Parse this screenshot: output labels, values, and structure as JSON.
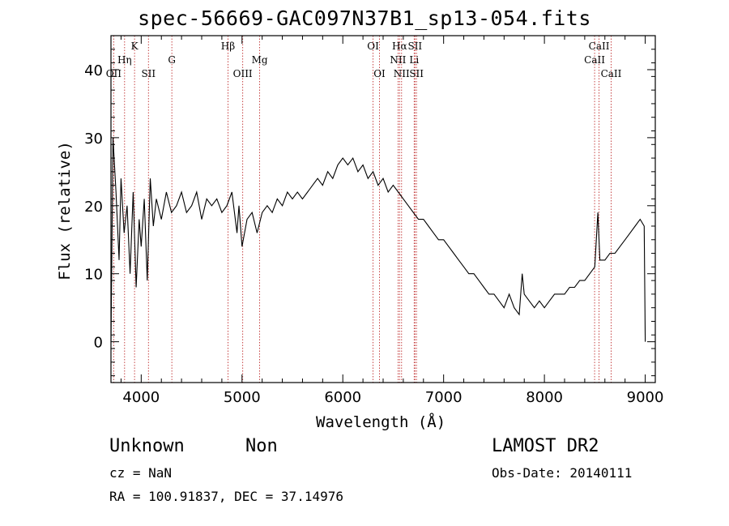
{
  "chart_data": {
    "type": "line",
    "title": "spec-56669-GAC097N37B1_sp13-054.fits",
    "xlabel": "Wavelength (Å)",
    "ylabel": "Flux (relative)",
    "xlim": [
      3700,
      9100
    ],
    "ylim": [
      -6,
      45
    ],
    "x_ticks": [
      "4000",
      "5000",
      "6000",
      "7000",
      "8000",
      "9000"
    ],
    "y_ticks": [
      "0",
      "10",
      "20",
      "30",
      "40"
    ],
    "grid": false,
    "series": [
      {
        "x": [
          3700,
          3720,
          3750,
          3780,
          3800,
          3830,
          3860,
          3890,
          3920,
          3950,
          3980,
          4000,
          4030,
          4060,
          4090,
          4120,
          4150,
          4200,
          4250,
          4300,
          4350,
          4400,
          4450,
          4500,
          4550,
          4600,
          4650,
          4700,
          4750,
          4800,
          4850,
          4900,
          4950,
          4970,
          5000,
          5050,
          5100,
          5150,
          5200,
          5250,
          5300,
          5350,
          5400,
          5450,
          5500,
          5550,
          5600,
          5650,
          5700,
          5750,
          5800,
          5850,
          5900,
          5950,
          6000,
          6050,
          6100,
          6150,
          6200,
          6250,
          6300,
          6350,
          6400,
          6450,
          6500,
          6550,
          6600,
          6650,
          6700,
          6750,
          6800,
          6850,
          6900,
          6950,
          7000,
          7050,
          7100,
          7150,
          7200,
          7250,
          7300,
          7350,
          7400,
          7450,
          7500,
          7550,
          7600,
          7650,
          7700,
          7750,
          7780,
          7800,
          7850,
          7900,
          7950,
          8000,
          8050,
          8100,
          8150,
          8200,
          8250,
          8300,
          8350,
          8400,
          8450,
          8500,
          8530,
          8550,
          8600,
          8650,
          8700,
          8750,
          8800,
          8850,
          8900,
          8950,
          8990,
          9000
        ],
        "y": [
          0,
          30,
          22,
          12,
          24,
          16,
          20,
          10,
          22,
          8,
          18,
          14,
          21,
          9,
          24,
          17,
          21,
          18,
          22,
          19,
          20,
          22,
          19,
          20,
          22,
          18,
          21,
          20,
          21,
          19,
          20,
          22,
          16,
          20,
          14,
          18,
          19,
          16,
          19,
          20,
          19,
          21,
          20,
          22,
          21,
          22,
          21,
          22,
          23,
          24,
          23,
          25,
          24,
          26,
          27,
          26,
          27,
          25,
          26,
          24,
          25,
          23,
          24,
          22,
          23,
          22,
          21,
          20,
          19,
          18,
          18,
          17,
          16,
          15,
          15,
          14,
          13,
          12,
          11,
          10,
          10,
          9,
          8,
          7,
          7,
          6,
          5,
          7,
          5,
          4,
          10,
          7,
          6,
          5,
          6,
          5,
          6,
          7,
          7,
          7,
          8,
          8,
          9,
          9,
          10,
          11,
          19,
          12,
          12,
          13,
          13,
          14,
          15,
          16,
          17,
          18,
          17,
          0
        ]
      }
    ],
    "lines": [
      {
        "label": "OII",
        "x": 3727,
        "row": 3
      },
      {
        "label": "Hη",
        "x": 3835,
        "row": 2
      },
      {
        "label": "K",
        "x": 3934,
        "row": 1
      },
      {
        "label": "SII",
        "x": 4072,
        "row": 3
      },
      {
        "label": "G",
        "x": 4304,
        "row": 2
      },
      {
        "label": "Hβ",
        "x": 4861,
        "row": 1
      },
      {
        "label": "OIII",
        "x": 5007,
        "row": 3
      },
      {
        "label": "Mg",
        "x": 5175,
        "row": 2
      },
      {
        "label": "OI",
        "x": 6300,
        "row": 1
      },
      {
        "label": "OI",
        "x": 6364,
        "row": 3
      },
      {
        "label": "Hα",
        "x": 6563,
        "row": 1
      },
      {
        "label": "NII",
        "x": 6548,
        "row": 2
      },
      {
        "label": "NII",
        "x": 6583,
        "row": 3
      },
      {
        "label": "SII",
        "x": 6716,
        "row": 1
      },
      {
        "label": "Li",
        "x": 6708,
        "row": 2
      },
      {
        "label": "SII",
        "x": 6731,
        "row": 3
      },
      {
        "label": "CaII",
        "x": 8542,
        "row": 1
      },
      {
        "label": "CaII",
        "x": 8498,
        "row": 2
      },
      {
        "label": "CaII",
        "x": 8662,
        "row": 3
      }
    ]
  },
  "footer": {
    "object_class": "Unknown",
    "object_subclass": "Non",
    "survey": "LAMOST DR2",
    "cz": "cz = NaN",
    "obs_date": "Obs-Date: 20140111",
    "coords": "RA = 100.91837, DEC =  37.14976"
  }
}
